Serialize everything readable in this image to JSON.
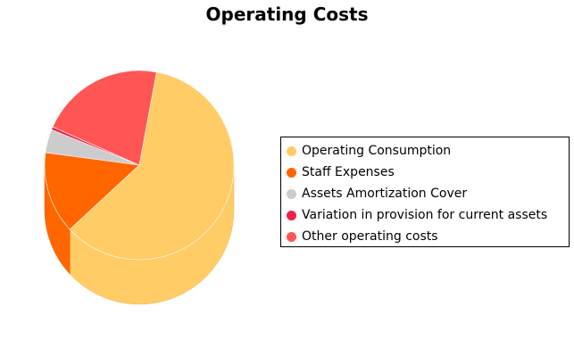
{
  "chart_data": {
    "type": "pie",
    "title": "Operating Costs",
    "legend_position": "right",
    "slices": [
      {
        "name": "Operating Consumption",
        "value": 60.2,
        "color": "#FFCC66"
      },
      {
        "name": "Staff Expenses",
        "value": 14.0,
        "color": "#FF6600"
      },
      {
        "name": "Assets Amortization Cover",
        "value": 4.0,
        "color": "#CCCCCC"
      },
      {
        "name": "Variation in provision for current assets",
        "value": 0.5,
        "color": "#EE2244"
      },
      {
        "name": "Other operating costs",
        "value": 21.3,
        "color": "#FF5555"
      }
    ]
  }
}
